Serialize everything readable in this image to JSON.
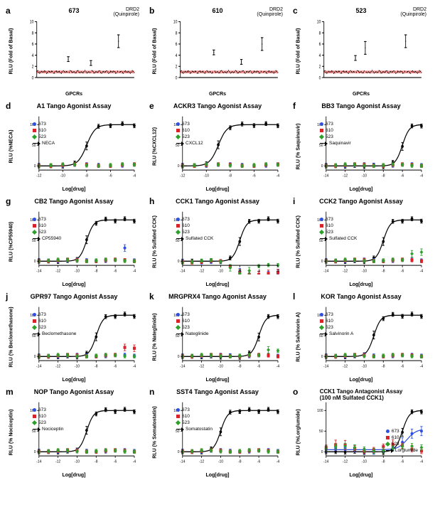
{
  "figure_width": 612,
  "figure_height": 720,
  "compounds": {
    "a": {
      "label": "673",
      "color": "#2e4fe0",
      "marker": "circle"
    },
    "b": {
      "label": "610",
      "color": "#d8232a",
      "marker": "square"
    },
    "c": {
      "label": "523",
      "color": "#2da02c",
      "marker": "diamond"
    }
  },
  "ref_color": "#000000",
  "colors": {
    "baseline_broadbar": "#fcb9b9"
  },
  "screening_panels": [
    {
      "letter": "a",
      "title": "673",
      "corner": "DRD2\n(Quinpirole)",
      "ylab": "RLU (Fold of Basal)",
      "xlab": "GPCRs",
      "ylim": [
        0,
        10
      ],
      "spikes": [
        {
          "i": 0.32,
          "v": 3.3
        },
        {
          "i": 0.55,
          "v": 2.6
        },
        {
          "i": 0.83,
          "v": 6.5
        }
      ]
    },
    {
      "letter": "b",
      "title": "610",
      "corner": "DRD2\n(Quinpirole)",
      "ylab": "RLU (Fold of Basal)",
      "xlab": "GPCRs",
      "ylim": [
        0,
        10
      ],
      "spikes": [
        {
          "i": 0.34,
          "v": 4.5
        },
        {
          "i": 0.62,
          "v": 2.8
        },
        {
          "i": 0.83,
          "v": 6.0
        }
      ]
    },
    {
      "letter": "c",
      "title": "523",
      "corner": "DRD2\n(Quinpirole)",
      "ylab": "RLU (Fold of Basal)",
      "xlab": "GPCRs",
      "ylim": [
        0,
        10
      ],
      "spikes": [
        {
          "i": 0.32,
          "v": 3.5
        },
        {
          "i": 0.42,
          "v": 5.3
        },
        {
          "i": 0.83,
          "v": 6.5
        }
      ]
    }
  ],
  "dose_panels": [
    {
      "letter": "d",
      "title": "A1 Tango Agonist Assay",
      "ref": "NECA",
      "ylab": "RLU (%NECA)",
      "x50": -8,
      "xrange": [
        -12,
        -4
      ],
      "compound_behavior": "flat",
      "custom": null
    },
    {
      "letter": "e",
      "title": "ACKR3 Tango Agonist Assay",
      "ref": "CXCL12",
      "ylab": "RLU (%CXCL12)",
      "x50": -9,
      "xrange": [
        -12,
        -4
      ],
      "compound_behavior": "flat",
      "custom": null
    },
    {
      "letter": "f",
      "title": "BB3 Tango Agonist Assay",
      "ref": "Saquinavir",
      "ylab": "RLU (% Saquinavir)",
      "x50": -6,
      "xrange": [
        -14,
        -4
      ],
      "compound_behavior": "flat",
      "custom": null
    },
    {
      "letter": "g",
      "title": "CB2 Tango Agonist Assay",
      "ref": "CP55940",
      "ylab": "RLU (%CP55940)",
      "x50": -9,
      "xrange": [
        -14,
        -4
      ],
      "compound_behavior": "flat",
      "custom": "g"
    },
    {
      "letter": "h",
      "title": "CCK1 Tango Agonist Assay",
      "ref": "Sulfated CCK",
      "ylab": "RLU (% Sulfated CCK)",
      "x50": -8,
      "xrange": [
        -14,
        -4
      ],
      "compound_behavior": "decline",
      "custom": null
    },
    {
      "letter": "i",
      "title": "CCK2 Tango Agonist Assay",
      "ref": "Sulfated CCK",
      "ylab": "RLU (% Sulfated CCK)",
      "x50": -8,
      "xrange": [
        -14,
        -4
      ],
      "compound_behavior": "flat",
      "custom": "i"
    },
    {
      "letter": "j",
      "title": "GPR97 Tango Agonist Assay",
      "ref": "Beclomethasone",
      "ylab": "RLU (% Beclomethasone)",
      "x50": -8,
      "xrange": [
        -14,
        -4
      ],
      "compound_behavior": "flat",
      "custom": "j"
    },
    {
      "letter": "k",
      "title": "MRGPRX4 Tango Agonist Assay",
      "ref": "Nateglinide",
      "ylab": "RLU (% Nateglinide)",
      "x50": -6,
      "xrange": [
        -14,
        -4
      ],
      "compound_behavior": "flat",
      "custom": "k"
    },
    {
      "letter": "l",
      "title": "KOR Tango Agonist Assay",
      "ref": "Salvinorin A",
      "ylab": "RLU (% Salvinorin A)",
      "x50": -9,
      "xrange": [
        -14,
        -4
      ],
      "compound_behavior": "flat",
      "custom": null
    },
    {
      "letter": "m",
      "title": "NOP Tango Agonist Assay",
      "ref": "Nociceptin",
      "ylab": "RLU (% Nociceptin)",
      "x50": -9,
      "xrange": [
        -14,
        -4
      ],
      "compound_behavior": "flat",
      "custom": null
    },
    {
      "letter": "n",
      "title": "SST4 Tango Agonist Assay",
      "ref": "Somatostatin",
      "ylab": "RLU (% Somatostatin)",
      "x50": -10,
      "xrange": [
        -14,
        -4
      ],
      "compound_behavior": "flat",
      "custom": null
    },
    {
      "letter": "o",
      "title": "CCK1 Tango Antagonist Assay\n(100 nM Sulfated CCK1)",
      "ref": "Lorglumide",
      "ylab": "RLU (%Lorglumide)",
      "x50": -6,
      "xrange": [
        -14,
        -4
      ],
      "compound_behavior": "flat",
      "custom": "o",
      "legend_right": true
    }
  ],
  "dose_common": {
    "ylim": [
      -10,
      120
    ],
    "yticks": [
      0,
      50,
      100
    ]
  }
}
